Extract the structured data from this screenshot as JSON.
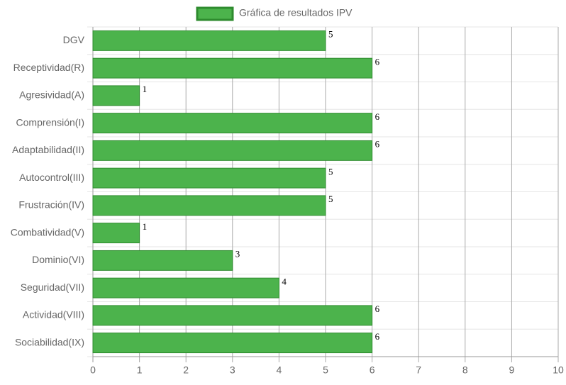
{
  "chart_data": {
    "type": "hbar",
    "categories": [
      "DGV",
      "Receptividad(R)",
      "Agresividad(A)",
      "Comprensión(I)",
      "Adaptabilidad(II)",
      "Autocontrol(III)",
      "Frustración(IV)",
      "Combatividad(V)",
      "Dominio(VI)",
      "Seguridad(VII)",
      "Actividad(VIII)",
      "Sociabilidad(IX)"
    ],
    "series": [
      {
        "name": "Gráfica de resultados IPV",
        "color": "#4cb34c",
        "border_color": "#2e8b2e",
        "values": [
          5,
          6,
          1,
          6,
          6,
          5,
          5,
          1,
          3,
          4,
          6,
          6
        ]
      }
    ],
    "xlim": [
      0,
      10
    ],
    "xticks": [
      0,
      1,
      2,
      3,
      4,
      5,
      6,
      7,
      8,
      9,
      10
    ],
    "grid": true,
    "legend": "top"
  }
}
